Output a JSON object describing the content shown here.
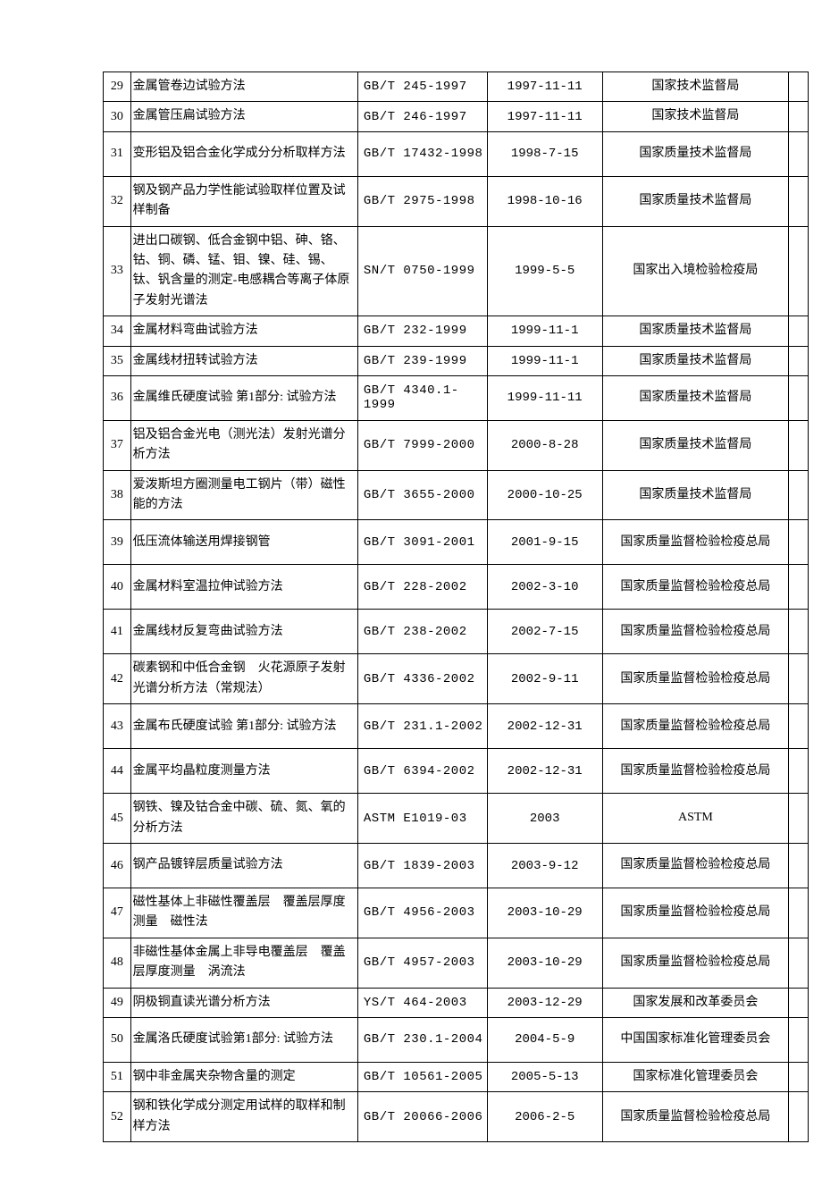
{
  "table": {
    "border_color": "#000000",
    "background_color": "#ffffff",
    "font_size": 14,
    "rows": [
      {
        "num": "29",
        "title": "金属管卷边试验方法",
        "code": "GB/T 245-1997",
        "date": "1997-11-11",
        "org": "国家技术监督局",
        "h": "s"
      },
      {
        "num": "30",
        "title": "金属管压扁试验方法",
        "code": "GB/T 246-1997",
        "date": "1997-11-11",
        "org": "国家技术监督局",
        "h": "s"
      },
      {
        "num": "31",
        "title": "变形铝及铝合金化学成分分析取样方法",
        "code": "GB/T 17432-1998",
        "date": "1998-7-15",
        "org": "国家质量技术监督局",
        "h": "t"
      },
      {
        "num": "32",
        "title": "钢及钢产品力学性能试验取样位置及试样制备",
        "code": "GB/T 2975-1998",
        "date": "1998-10-16",
        "org": "国家质量技术监督局",
        "h": "t"
      },
      {
        "num": "33",
        "title": "进出口碳钢、低合金钢中铝、砷、铬、钴、铜、磷、锰、钼、镍、硅、锡、钛、钒含量的测定-电感耦合等离子体原子发射光谱法",
        "code": "SN/T 0750-1999",
        "date": "1999-5-5",
        "org": "国家出入境检验检疫局",
        "h": "v"
      },
      {
        "num": "34",
        "title": "金属材料弯曲试验方法",
        "code": "GB/T 232-1999",
        "date": "1999-11-1",
        "org": "国家质量技术监督局",
        "h": "s"
      },
      {
        "num": "35",
        "title": "金属线材扭转试验方法",
        "code": "GB/T 239-1999",
        "date": "1999-11-1",
        "org": "国家质量技术监督局",
        "h": "s"
      },
      {
        "num": "36",
        "title": "金属维氏硬度试验 第1部分: 试验方法",
        "code": "GB/T 4340.1-1999",
        "date": "1999-11-11",
        "org": "国家质量技术监督局",
        "h": "t"
      },
      {
        "num": "37",
        "title": "铝及铝合金光电（测光法）发射光谱分析方法",
        "code": "GB/T 7999-2000",
        "date": "2000-8-28",
        "org": "国家质量技术监督局",
        "h": "t"
      },
      {
        "num": "38",
        "title": "爱泼斯坦方圈测量电工钢片（带）磁性能的方法",
        "code": "GB/T 3655-2000",
        "date": "2000-10-25",
        "org": "国家质量技术监督局",
        "h": "t"
      },
      {
        "num": "39",
        "title": "低压流体输送用焊接钢管",
        "code": "GB/T 3091-2001",
        "date": "2001-9-15",
        "org": "国家质量监督检验检疫总局",
        "h": "t"
      },
      {
        "num": "40",
        "title": "金属材料室温拉伸试验方法",
        "code": "GB/T 228-2002",
        "date": "2002-3-10",
        "org": "国家质量监督检验检疫总局",
        "h": "t"
      },
      {
        "num": "41",
        "title": "金属线材反复弯曲试验方法",
        "code": "GB/T 238-2002",
        "date": "2002-7-15",
        "org": "国家质量监督检验检疫总局",
        "h": "t"
      },
      {
        "num": "42",
        "title": "碳素钢和中低合金钢　火花源原子发射光谱分析方法（常规法）",
        "code": "GB/T 4336-2002",
        "date": "2002-9-11",
        "org": "国家质量监督检验检疫总局",
        "h": "t"
      },
      {
        "num": "43",
        "title": "金属布氏硬度试验 第1部分: 试验方法",
        "code": "GB/T 231.1-2002",
        "date": "2002-12-31",
        "org": "国家质量监督检验检疫总局",
        "h": "t"
      },
      {
        "num": "44",
        "title": "金属平均晶粒度测量方法",
        "code": "GB/T 6394-2002",
        "date": "2002-12-31",
        "org": "国家质量监督检验检疫总局",
        "h": "t"
      },
      {
        "num": "45",
        "title": "钢铁、镍及钴合金中碳、硫、氮、氧的分析方法",
        "code": "ASTM E1019-03",
        "date": "2003",
        "org": "ASTM",
        "h": "t"
      },
      {
        "num": "46",
        "title": "钢产品镀锌层质量试验方法",
        "code": "GB/T 1839-2003",
        "date": "2003-9-12",
        "org": "国家质量监督检验检疫总局",
        "h": "t"
      },
      {
        "num": "47",
        "title": "磁性基体上非磁性覆盖层　覆盖层厚度测量　磁性法",
        "code": "GB/T 4956-2003",
        "date": "2003-10-29",
        "org": "国家质量监督检验检疫总局",
        "h": "t"
      },
      {
        "num": "48",
        "title": "非磁性基体金属上非导电覆盖层　覆盖层厚度测量　涡流法",
        "code": "GB/T 4957-2003",
        "date": "2003-10-29",
        "org": "国家质量监督检验检疫总局",
        "h": "t"
      },
      {
        "num": "49",
        "title": "阴极铜直读光谱分析方法",
        "code": "YS/T 464-2003",
        "date": "2003-12-29",
        "org": "国家发展和改革委员会",
        "h": "s"
      },
      {
        "num": "50",
        "title": "金属洛氏硬度试验第1部分: 试验方法",
        "code": "GB/T 230.1-2004",
        "date": "2004-5-9",
        "org": "中国国家标准化管理委员会",
        "h": "t"
      },
      {
        "num": "51",
        "title": "钢中非金属夹杂物含量的测定",
        "code": "GB/T 10561-2005",
        "date": "2005-5-13",
        "org": "国家标准化管理委员会",
        "h": "s"
      },
      {
        "num": "52",
        "title": "钢和铁化学成分测定用试样的取样和制样方法",
        "code": "GB/T 20066-2006",
        "date": "2006-2-5",
        "org": "国家质量监督检验检疫总局",
        "h": "t"
      }
    ]
  }
}
